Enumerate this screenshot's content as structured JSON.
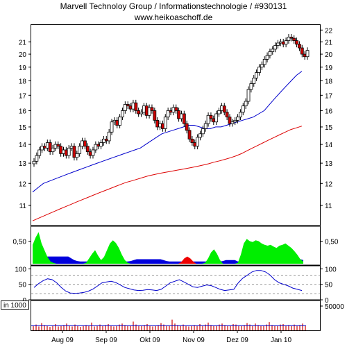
{
  "header": {
    "title": "Marvell Technoloy Group / Informationstechnologie / #930131",
    "url": "www.heikoaschoff.de"
  },
  "colors": {
    "up_candle": "#ffffff",
    "down_candle": "#cc0000",
    "ma_short": "#0000cc",
    "ma_long": "#dd0000",
    "indicator_positive": "#00ee00",
    "indicator_blue": "#0000dd",
    "indicator_negative": "#ee0000",
    "oscillator": "#0000cc",
    "volume": "#cc0000"
  },
  "chart_data": [
    {
      "type": "candlestick",
      "title": "Marvell Technoloy Group / Informationstechnologie / #930131",
      "y_scale": "log",
      "ylim": [
        10.3,
        22.2
      ],
      "yticks": [
        11,
        12,
        13,
        14,
        15,
        16,
        17,
        18,
        19,
        20,
        21,
        22
      ],
      "yticks_left": [
        11,
        12,
        13,
        14,
        15,
        16,
        17,
        18,
        19,
        20,
        21
      ],
      "x_labels": [
        "Aug 09",
        "Sep 09",
        "Okt 09",
        "Nov 09",
        "Dez 09",
        "Jan 10"
      ],
      "close": [
        13.1,
        13.4,
        13.7,
        13.9,
        13.8,
        14.1,
        13.6,
        13.8,
        14.0,
        13.9,
        13.5,
        13.7,
        13.4,
        13.8,
        13.9,
        13.3,
        13.5,
        13.9,
        14.2,
        13.9,
        13.6,
        13.4,
        13.7,
        14.0,
        13.9,
        14.1,
        14.3,
        14.2,
        14.7,
        15.3,
        15.4,
        15.1,
        15.6,
        16.0,
        16.4,
        16.3,
        16.1,
        16.5,
        16.0,
        15.8,
        15.9,
        16.3,
        15.7,
        16.2,
        16.0,
        15.4,
        15.0,
        15.2,
        14.9,
        15.6,
        16.0,
        15.9,
        16.2,
        16.0,
        15.5,
        15.8,
        15.2,
        14.8,
        14.3,
        14.1,
        13.9,
        14.4,
        14.6,
        14.9,
        15.2,
        15.7,
        15.5,
        15.3,
        15.8,
        16.0,
        16.3,
        15.9,
        15.6,
        15.2,
        15.3,
        15.4,
        15.6,
        15.9,
        16.3,
        16.6,
        17.4,
        17.8,
        18.2,
        18.6,
        19.0,
        19.2,
        19.6,
        19.9,
        20.2,
        20.4,
        20.7,
        20.9,
        21.0,
        20.8,
        21.1,
        21.4,
        21.3,
        21.1,
        20.8,
        20.5,
        20.0,
        19.8,
        20.3
      ],
      "ma_short": [
        11.6,
        11.8,
        12.0,
        12.1,
        12.2,
        12.3,
        12.4,
        12.5,
        12.6,
        12.7,
        12.8,
        12.9,
        13.0,
        13.1,
        13.2,
        13.3,
        13.4,
        13.5,
        13.6,
        13.7,
        13.8,
        14.0,
        14.2,
        14.4,
        14.6,
        14.7,
        14.8,
        14.9,
        15.0,
        15.1,
        15.1,
        15.0,
        14.9,
        14.9,
        15.0,
        15.0,
        15.1,
        15.2,
        15.3,
        15.4,
        15.5,
        15.6,
        15.8,
        16.0,
        16.4,
        16.8,
        17.2,
        17.6,
        18.0,
        18.4,
        18.7
      ],
      "ma_long": [
        10.35,
        10.45,
        10.55,
        10.65,
        10.75,
        10.85,
        10.95,
        11.05,
        11.15,
        11.25,
        11.35,
        11.45,
        11.55,
        11.65,
        11.75,
        11.85,
        11.95,
        12.05,
        12.12,
        12.2,
        12.28,
        12.36,
        12.42,
        12.48,
        12.53,
        12.58,
        12.63,
        12.68,
        12.73,
        12.78,
        12.84,
        12.9,
        12.97,
        13.05,
        13.12,
        13.2,
        13.28,
        13.38,
        13.5,
        13.65,
        13.8,
        13.95,
        14.1,
        14.25,
        14.4,
        14.55,
        14.7,
        14.85,
        14.95,
        15.05
      ]
    },
    {
      "type": "area",
      "yticks": [
        0.5
      ],
      "ytick_labels": [
        "0,50"
      ],
      "ylim": [
        0,
        0.8
      ],
      "positive": [
        0.42,
        0.58,
        0.7,
        0.45,
        0.3,
        0.15,
        0.05,
        0.02,
        0.0,
        0.0,
        0.0,
        0.0,
        0.0,
        0.0,
        0.0,
        0.0,
        0.0,
        0.0,
        0.02,
        0.12,
        0.22,
        0.3,
        0.18,
        0.08,
        0.15,
        0.3,
        0.45,
        0.52,
        0.46,
        0.35,
        0.2,
        0.08,
        0.02,
        0.0,
        0.0,
        0.0,
        0.0,
        0.0,
        0.0,
        0.0,
        0.0,
        0.0,
        0.0,
        0.0,
        0.0,
        0.0,
        0.0,
        0.0,
        0.0,
        0.0,
        0.0,
        0.0,
        0.0,
        0.0,
        0.0,
        0.0,
        0.0,
        0.0,
        0.02,
        0.12,
        0.25,
        0.32,
        0.22,
        0.08,
        0.0,
        0.0,
        0.0,
        0.0,
        0.0,
        0.02,
        0.2,
        0.45,
        0.55,
        0.5,
        0.48,
        0.52,
        0.5,
        0.45,
        0.42,
        0.4,
        0.42,
        0.38,
        0.35,
        0.4,
        0.42,
        0.45,
        0.4,
        0.35,
        0.28,
        0.2,
        0.1,
        0.05
      ],
      "blue_level": [
        0.05,
        0.05,
        0.08,
        0.12,
        0.16,
        0.16,
        0.16,
        0.16,
        0.16,
        0.16,
        0.16,
        0.16,
        0.16,
        0.12,
        0.08,
        0.06,
        0.05,
        0.05,
        0.05,
        0.05,
        0.05,
        0.05,
        0.05,
        0.05,
        0.05,
        0.05,
        0.05,
        0.05,
        0.05,
        0.05,
        0.05,
        0.05,
        0.05,
        0.06,
        0.08,
        0.1,
        0.1,
        0.1,
        0.1,
        0.1,
        0.1,
        0.1,
        0.1,
        0.1,
        0.08,
        0.06,
        0.05,
        0.05,
        0.05,
        0.05,
        0.05,
        0.05,
        0.05,
        0.05,
        0.05,
        0.05,
        0.05,
        0.05,
        0.05,
        0.05,
        0.05,
        0.05,
        0.05,
        0.05,
        0.06,
        0.08,
        0.08,
        0.08,
        0.08,
        0.05,
        0.05,
        0.05,
        0.05,
        0.05,
        0.05,
        0.05,
        0.05,
        0.05,
        0.05,
        0.05,
        0.05,
        0.05,
        0.05,
        0.05,
        0.05,
        0.05,
        0.05,
        0.06,
        0.08,
        0.1,
        0.1,
        0.08
      ],
      "negative": [
        0.0,
        0.0,
        0.0,
        0.0,
        0.0,
        0.0,
        0.0,
        0.0,
        0.0,
        0.0,
        0.0,
        0.0,
        0.0,
        0.0,
        0.0,
        0.0,
        0.0,
        0.0,
        0.0,
        0.0,
        0.0,
        0.0,
        0.0,
        0.0,
        0.0,
        0.0,
        0.0,
        0.0,
        0.0,
        0.0,
        0.0,
        0.0,
        0.0,
        0.0,
        0.0,
        0.0,
        0.0,
        0.0,
        0.0,
        0.0,
        0.0,
        0.0,
        0.0,
        0.0,
        0.0,
        0.0,
        0.0,
        0.0,
        0.0,
        0.0,
        0.04,
        0.12,
        0.16,
        0.12,
        0.05,
        0.0,
        0.0,
        0.0,
        0.0,
        0.0,
        0.0,
        0.0,
        0.0,
        0.0,
        0.0,
        0.0,
        0.0,
        0.0,
        0.0,
        0.0,
        0.0,
        0.0,
        0.0,
        0.0,
        0.0,
        0.0,
        0.0,
        0.0,
        0.0,
        0.0,
        0.0,
        0.0,
        0.0,
        0.0,
        0.0,
        0.0,
        0.0,
        0.0,
        0.0,
        0.0,
        0.0,
        0.0
      ]
    },
    {
      "type": "line",
      "ylim": [
        0,
        110
      ],
      "yticks": [
        0,
        50,
        100
      ],
      "reference_lines": [
        20,
        50,
        80
      ],
      "values": [
        40,
        52,
        62,
        68,
        65,
        55,
        40,
        28,
        22,
        21,
        22,
        24,
        28,
        35,
        45,
        55,
        58,
        60,
        56,
        48,
        40,
        36,
        32,
        30,
        31,
        33,
        32,
        30,
        34,
        44,
        55,
        60,
        65,
        58,
        50,
        42,
        40,
        44,
        48,
        46,
        40,
        34,
        30,
        32,
        34,
        55,
        70,
        80,
        90,
        95,
        95,
        90,
        80,
        65,
        55,
        50,
        45,
        38,
        34,
        30
      ]
    },
    {
      "type": "bar",
      "label": "in 1000",
      "ylim": [
        0,
        60000
      ],
      "yticks": [
        50000
      ],
      "ytick_labels": [
        "50000"
      ],
      "average_line": 9500,
      "values": [
        9000,
        12000,
        8000,
        15000,
        11000,
        9000,
        7000,
        10000,
        13000,
        8000,
        9000,
        11000,
        14000,
        10000,
        8000,
        12000,
        9000,
        7000,
        10000,
        11000,
        9000,
        16000,
        8000,
        10000,
        12000,
        9000,
        11000,
        13000,
        10000,
        8000,
        9000,
        12000,
        14000,
        11000,
        10000,
        9000,
        18000,
        12000,
        10000,
        9000,
        11000,
        13000,
        10000,
        8000,
        9000,
        11000,
        15000,
        12000,
        10000,
        9000,
        22000,
        14000,
        11000,
        10000,
        12000,
        9000,
        8000,
        10000,
        11000,
        9000,
        13000,
        10000,
        12000,
        16000,
        11000,
        9000,
        10000,
        12000,
        14000,
        11000,
        9000,
        10000,
        13000,
        12000,
        10000,
        9000,
        11000,
        15000,
        12000,
        10000,
        14000,
        11000,
        9000,
        10000,
        12000,
        17000,
        11000,
        10000,
        9000,
        12000,
        13000,
        10000,
        11000,
        9000,
        12000,
        10000,
        11000,
        14000,
        10000
      ]
    }
  ]
}
